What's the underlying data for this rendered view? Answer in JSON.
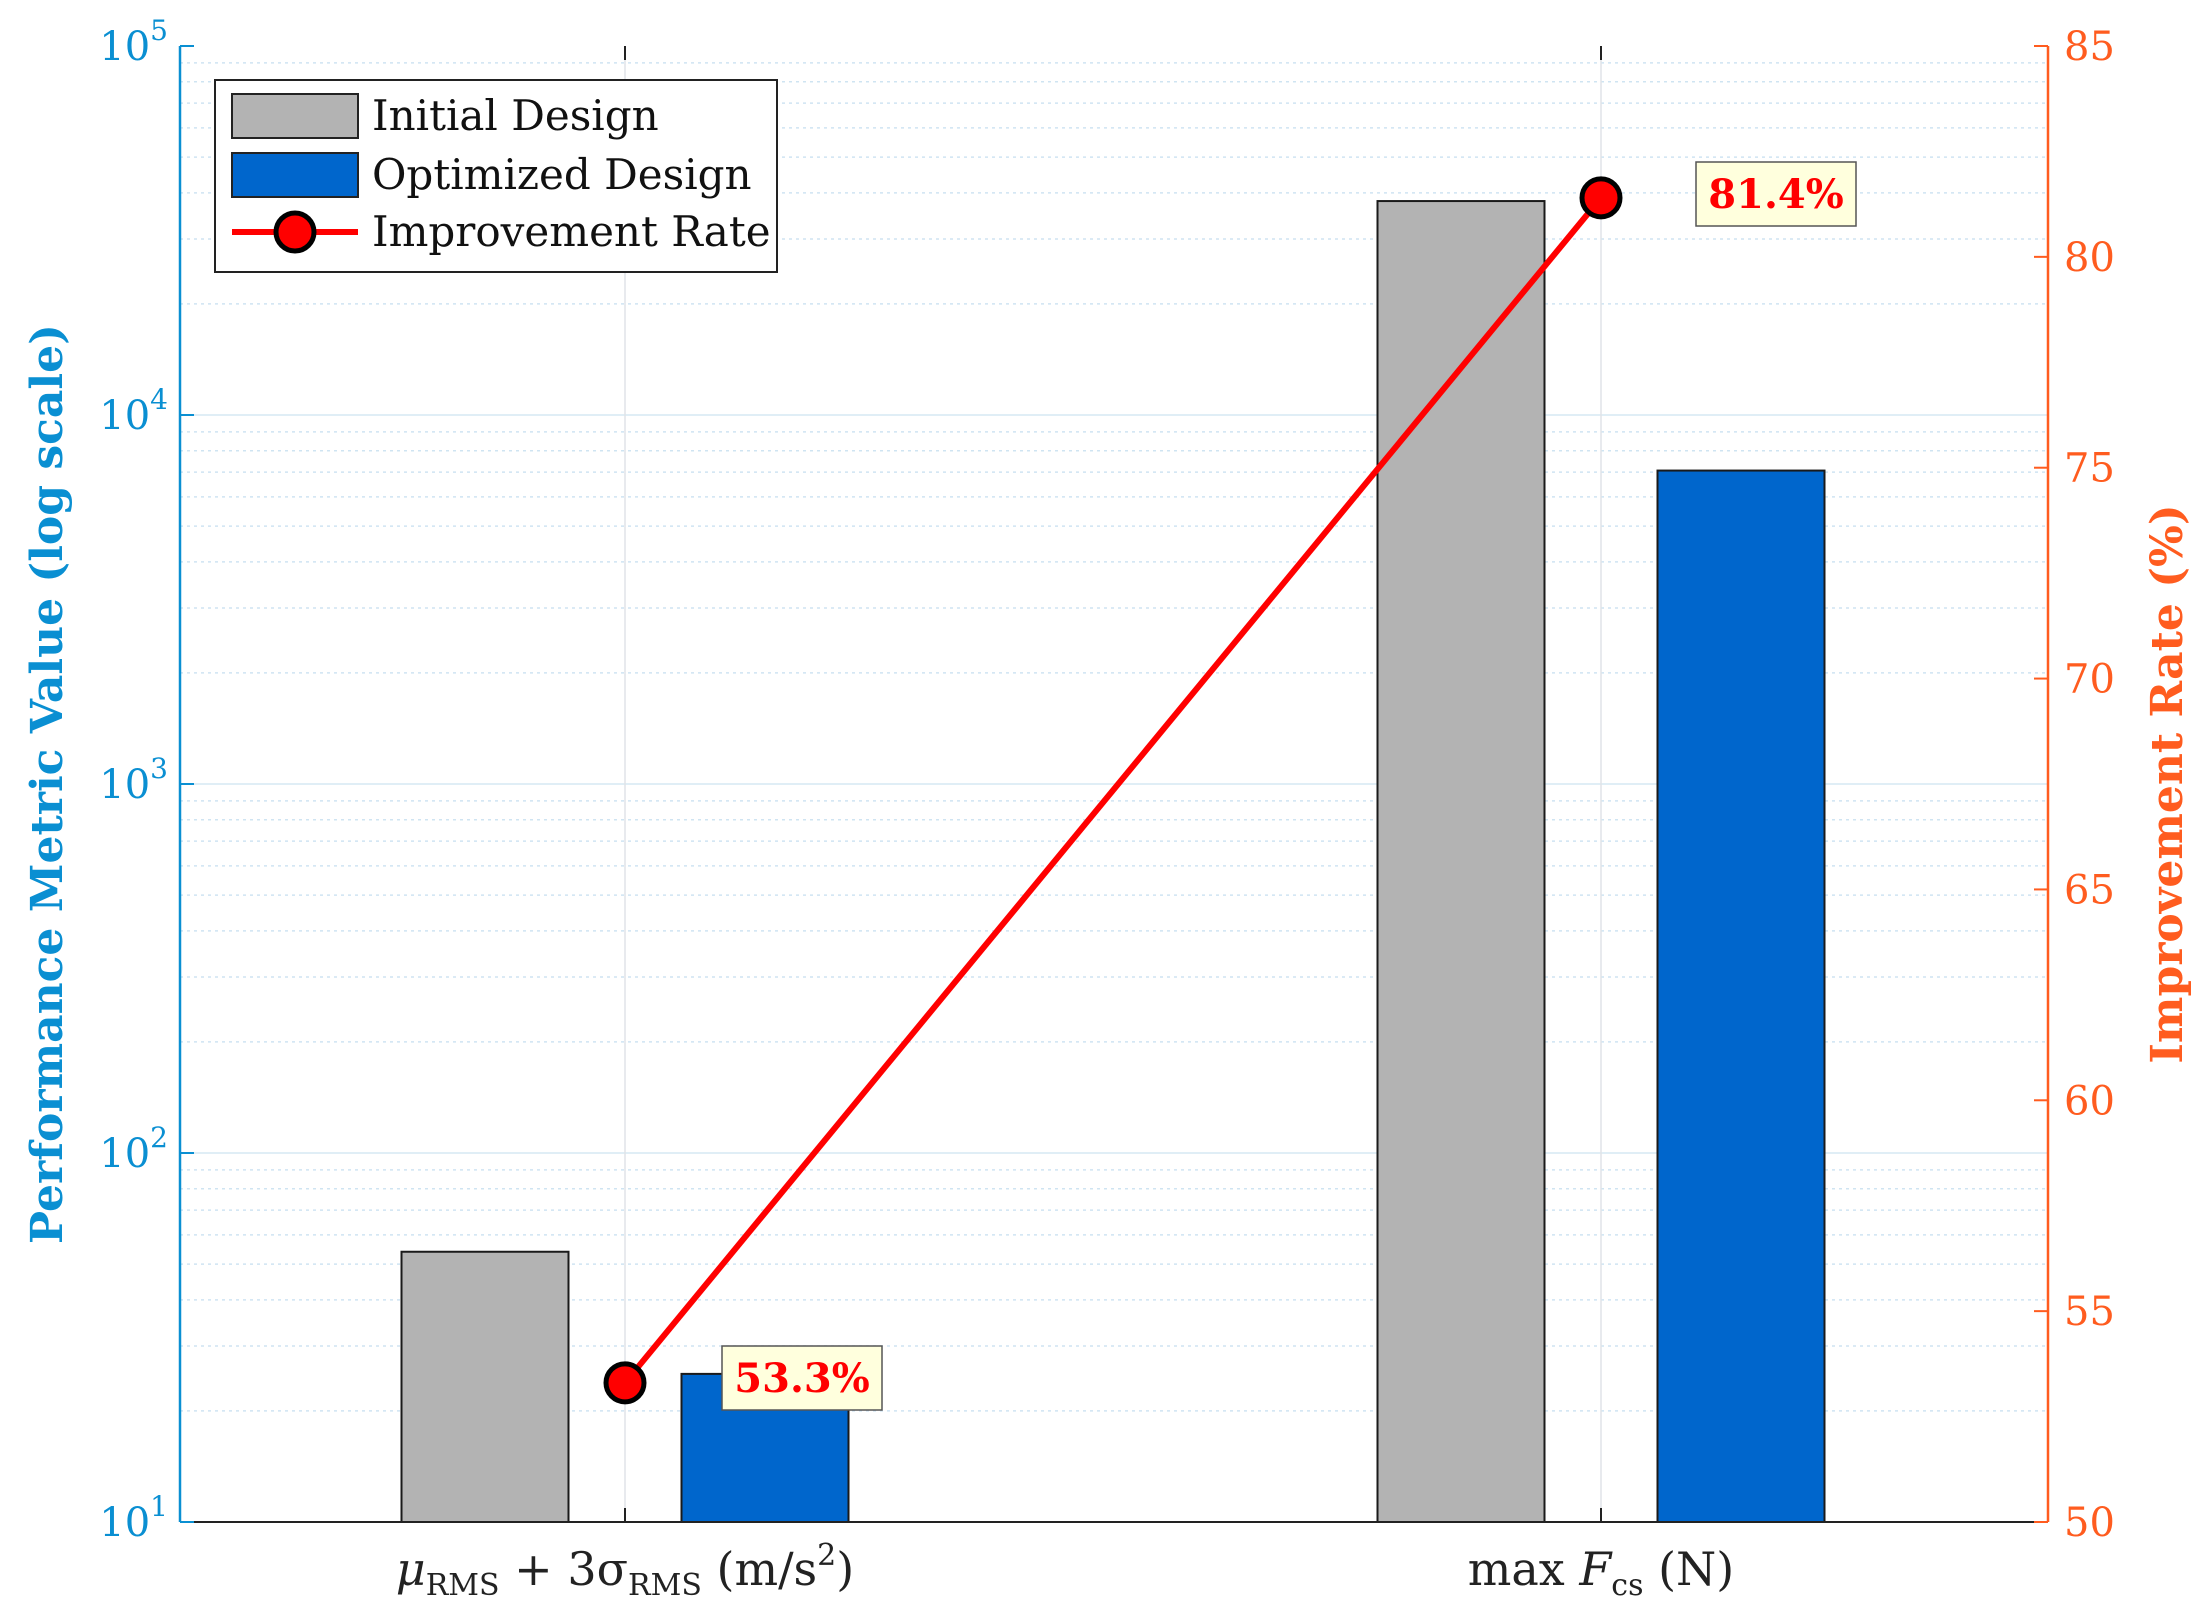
{
  "chart_data": {
    "type": "bar",
    "categories": [
      "μRMS + 3σRMS (m/s²)",
      "max Fcs (N)"
    ],
    "category_labels": [
      {
        "base": "μ",
        "sub1": "RMS",
        "mid": " + 3σ",
        "sub2": "RMS",
        "tail": " (m/s",
        "sup": "2",
        "end": ")"
      },
      {
        "base": "max ",
        "var": "F",
        "sub": "cs",
        "end": " (N)"
      }
    ],
    "series": [
      {
        "name": "Initial Design",
        "axis": "left",
        "values": [
          54,
          38000
        ],
        "color": "#b3b3b3"
      },
      {
        "name": "Optimized Design",
        "axis": "right_is_not",
        "values": [
          25.2,
          7070
        ],
        "color": "#0066cc"
      },
      {
        "name": "Improvement Rate",
        "axis": "right",
        "kind": "line",
        "values": [
          53.3,
          81.4
        ],
        "color": "#ff0000"
      }
    ],
    "data_labels": [
      "53.3%",
      "81.4%"
    ],
    "left_axis": {
      "label": "Performance Metric Value (log scale)",
      "scale": "log",
      "range": [
        10,
        100000
      ],
      "ticks": [
        {
          "base": "10",
          "exp": "1"
        },
        {
          "base": "10",
          "exp": "2"
        },
        {
          "base": "10",
          "exp": "3"
        },
        {
          "base": "10",
          "exp": "4"
        },
        {
          "base": "10",
          "exp": "5"
        }
      ],
      "color": "#0a8fd2"
    },
    "right_axis": {
      "label": "Improvement Rate (%)",
      "scale": "linear",
      "range": [
        50,
        85
      ],
      "ticks": [
        "50",
        "55",
        "60",
        "65",
        "70",
        "75",
        "80",
        "85"
      ],
      "color": "#ff5c1f"
    },
    "legend": {
      "placement": "top-left",
      "entries": [
        "Initial Design",
        "Optimized Design",
        "Improvement Rate"
      ]
    },
    "grid": true,
    "label_box_color": "#ffffdd"
  }
}
